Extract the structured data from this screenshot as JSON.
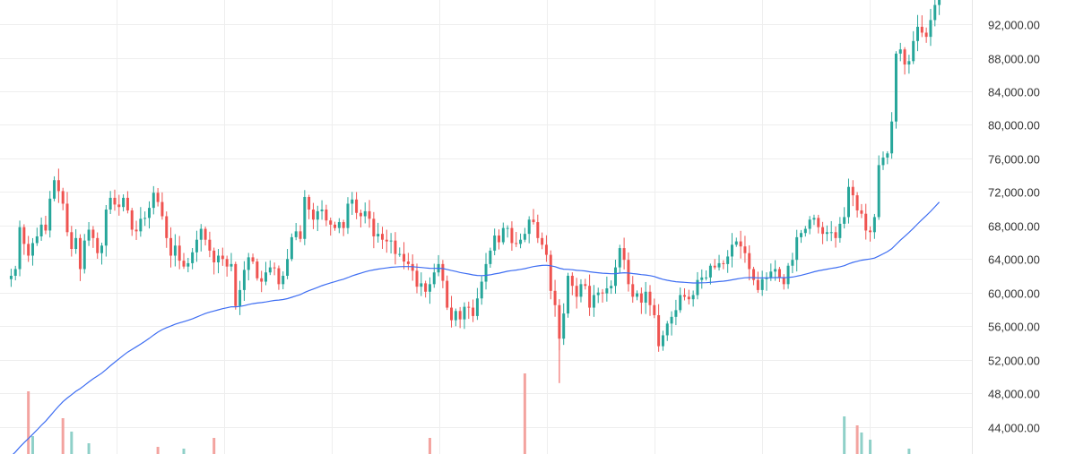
{
  "chart_data": {
    "type": "candlestick",
    "y_axis": {
      "position": "right",
      "tick_labels": [
        "44,000.00",
        "48,000.00",
        "52,000.00",
        "56,000.00",
        "60,000.00",
        "64,000.00",
        "68,000.00",
        "72,000.00",
        "76,000.00",
        "80,000.00",
        "84,000.00",
        "88,000.00",
        "92,000.00"
      ],
      "tick_values": [
        44000,
        48000,
        52000,
        56000,
        60000,
        64000,
        68000,
        72000,
        76000,
        80000,
        84000,
        88000,
        92000
      ],
      "range": [
        40000,
        95000
      ]
    },
    "grid": true,
    "colors": {
      "up": "#26a69a",
      "down": "#ef5350",
      "moving_average": "#3d6df2",
      "up_volume": "#8fd0c8",
      "down_volume": "#f3a39f",
      "grid": "#eeeeee",
      "axis_text": "#333333"
    },
    "closes": [
      62000,
      62800,
      67800,
      65800,
      64400,
      65900,
      66700,
      68100,
      67400,
      71200,
      73400,
      72100,
      70600,
      67200,
      65200,
      66500,
      62800,
      66200,
      67500,
      66500,
      64700,
      65600,
      69900,
      71300,
      70500,
      70200,
      71300,
      69800,
      67500,
      67300,
      68800,
      68900,
      70100,
      71900,
      70800,
      69100,
      66500,
      64400,
      65600,
      63800,
      63100,
      63500,
      64800,
      66300,
      67600,
      66300,
      65000,
      63600,
      64400,
      64000,
      63100,
      63400,
      58400,
      60300,
      62700,
      64200,
      63700,
      61700,
      61300,
      62400,
      63000,
      62900,
      61000,
      62000,
      64000,
      66600,
      67300,
      66400,
      71400,
      69900,
      68700,
      69700,
      69900,
      68600,
      68100,
      67700,
      68400,
      67700,
      70600,
      71100,
      69500,
      69100,
      69700,
      68800,
      66700,
      67000,
      66300,
      66100,
      66200,
      64600,
      64600,
      63700,
      63400,
      62600,
      60700,
      61100,
      60100,
      61000,
      62400,
      63400,
      61400,
      58200,
      56700,
      57800,
      56800,
      58300,
      58200,
      57200,
      59300,
      61300,
      63400,
      65000,
      66800,
      66000,
      67700,
      67700,
      65900,
      65800,
      66300,
      67000,
      68700,
      68400,
      66500,
      65700,
      64500,
      60200,
      58500,
      54500,
      57500,
      62000,
      60800,
      59500,
      61000,
      60800,
      58200,
      59700,
      60000,
      59900,
      60500,
      60800,
      63000,
      65300,
      63900,
      61000,
      59500,
      59900,
      58800,
      60100,
      58500,
      57300,
      53600,
      54900,
      56300,
      57100,
      57900,
      59700,
      59500,
      59200,
      59700,
      61500,
      61800,
      61800,
      63200,
      63000,
      63500,
      63400,
      64300,
      65700,
      66100,
      65500,
      64700,
      62800,
      61500,
      60300,
      61600,
      61800,
      62500,
      62800,
      61800,
      61000,
      63200,
      63900,
      66600,
      67100,
      67600,
      68700,
      68900,
      67800,
      67000,
      67200,
      67200,
      66500,
      68200,
      69000,
      72600,
      71600,
      69800,
      69400,
      67400,
      67200,
      69000,
      75200,
      76100,
      76600,
      80400,
      88500,
      89000,
      87200,
      87600,
      90000,
      91700,
      91000,
      90500,
      92500,
      94300,
      95600
    ],
    "moving_average_endpoints": [
      40000,
      66200
    ],
    "volume_markers_visible": true
  }
}
